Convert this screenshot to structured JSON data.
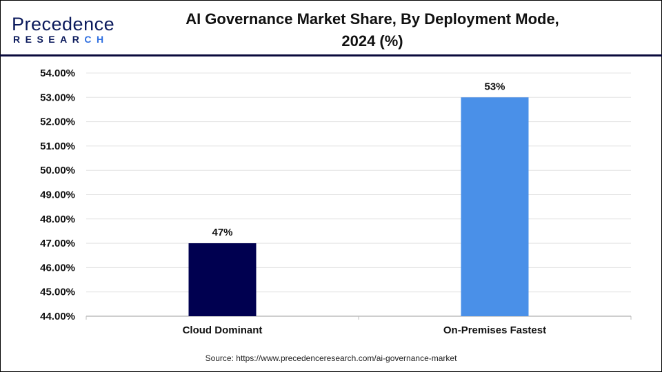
{
  "logo": {
    "line1": "Precedence",
    "line2": "RESEARCH"
  },
  "title_line1": "AI Governance Market Share, By Deployment Mode,",
  "title_line2": "2024 (%)",
  "source": "Source: https://www.precedenceresearch.com/ai-governance-market",
  "chart_data": {
    "type": "bar",
    "title": "AI Governance Market Share, By Deployment Mode, 2024 (%)",
    "categories": [
      "Cloud Dominant",
      "On-Premises Fastest"
    ],
    "values": [
      47,
      53
    ],
    "data_labels": [
      "47%",
      "53%"
    ],
    "colors": [
      "#000050",
      "#4a90e8"
    ],
    "ylim": [
      44,
      54
    ],
    "yticks": [
      "44.00%",
      "45.00%",
      "46.00%",
      "47.00%",
      "48.00%",
      "49.00%",
      "50.00%",
      "51.00%",
      "52.00%",
      "53.00%",
      "54.00%"
    ],
    "grid": true,
    "xlabel": "",
    "ylabel": ""
  }
}
